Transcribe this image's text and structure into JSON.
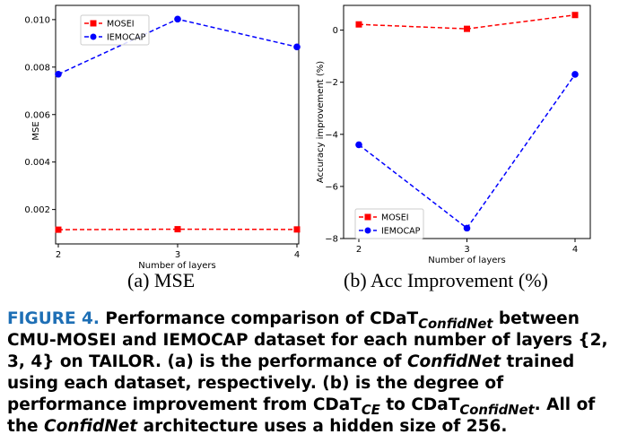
{
  "chart_data": [
    {
      "id": "mse",
      "type": "line",
      "xlabel": "Number of layers",
      "ylabel": "MSE",
      "x": [
        2,
        3,
        4
      ],
      "xticks": [
        "2",
        "3",
        "4"
      ],
      "yticks": [
        0.002,
        0.004,
        0.006,
        0.008,
        0.01
      ],
      "ytick_labels": [
        "0.002",
        "0.004",
        "0.006",
        "0.008",
        "0.010"
      ],
      "ylim": [
        0.00055,
        0.0106
      ],
      "grid": false,
      "legend_position": "top-left",
      "series": [
        {
          "name": "MOSEI",
          "values": [
            0.00115,
            0.00117,
            0.00116
          ],
          "color": "#ff0000",
          "marker": "square"
        },
        {
          "name": "IEMOCAP",
          "values": [
            0.0077,
            0.01002,
            0.00885
          ],
          "color": "#0000ff",
          "marker": "circle"
        }
      ]
    },
    {
      "id": "acc",
      "type": "line",
      "xlabel": "Number of layers",
      "ylabel": "Accuracy improvement (%)",
      "x": [
        2,
        3,
        4
      ],
      "xticks": [
        "2",
        "3",
        "4"
      ],
      "yticks": [
        -8,
        -6,
        -4,
        -2,
        0
      ],
      "ytick_labels": [
        "−8",
        "−6",
        "−4",
        "−2",
        "0"
      ],
      "ylim": [
        -8.0,
        0.95
      ],
      "grid": false,
      "legend_position": "bottom-left",
      "series": [
        {
          "name": "MOSEI",
          "values": [
            0.22,
            0.05,
            0.58
          ],
          "color": "#ff0000",
          "marker": "square"
        },
        {
          "name": "IEMOCAP",
          "values": [
            -4.4,
            -7.6,
            -1.7
          ],
          "color": "#0000ff",
          "marker": "circle"
        }
      ]
    }
  ],
  "subcaptions": [
    "(a) MSE",
    "(b) Acc Improvement (%)"
  ],
  "caption": {
    "label": "FIGURE 4.",
    "t1": "Performance comparison of ",
    "cdat": "CDaT",
    "sub_confidnet": "ConfidNet",
    "t2": " between CMU-MOSEI and IEMOCAP dataset for each number of layers {2, 3, 4} on TAILOR. (a) is the performance of ",
    "confidnet": "ConfidNet",
    "t3": " trained using each dataset, respectively. (b) is the degree of performance improvement from ",
    "sub_ce": "CE",
    "t4": " to ",
    "t5": ". All of the ",
    "t6": " architecture uses a hidden size of 256."
  }
}
